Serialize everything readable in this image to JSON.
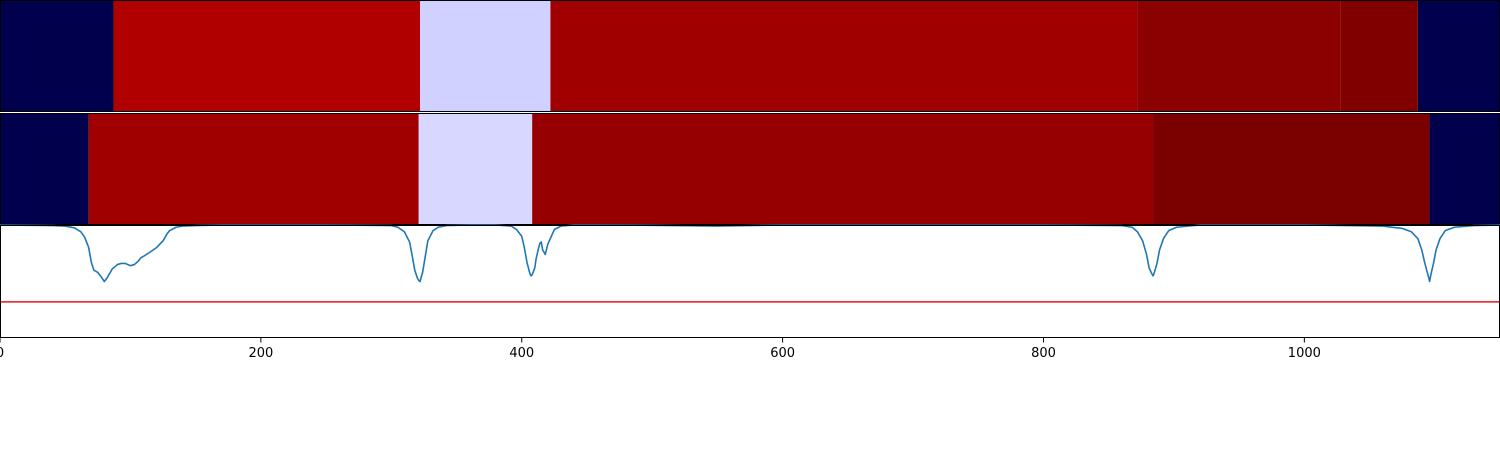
{
  "chart_data": {
    "type": "heatmap",
    "panels": [
      {
        "name": "segment-strip-1",
        "segments": [
          {
            "start": 0,
            "end": 87,
            "color": "#00004c"
          },
          {
            "start": 87,
            "end": 322,
            "color": "#b00000"
          },
          {
            "start": 322,
            "end": 422,
            "color": "#d1d1ff"
          },
          {
            "start": 422,
            "end": 872,
            "color": "#a10000"
          },
          {
            "start": 872,
            "end": 1028,
            "color": "#8b0000"
          },
          {
            "start": 1028,
            "end": 1087,
            "color": "#800000"
          },
          {
            "start": 1087,
            "end": 1150,
            "color": "#00004c"
          }
        ]
      },
      {
        "name": "segment-strip-2",
        "segments": [
          {
            "start": 0,
            "end": 68,
            "color": "#00004c"
          },
          {
            "start": 68,
            "end": 321,
            "color": "#a10000"
          },
          {
            "start": 321,
            "end": 408,
            "color": "#d7d7ff"
          },
          {
            "start": 408,
            "end": 884,
            "color": "#960000"
          },
          {
            "start": 884,
            "end": 1096,
            "color": "#7b0000"
          },
          {
            "start": 1096,
            "end": 1150,
            "color": "#00004c"
          }
        ]
      }
    ],
    "signal": {
      "color": "#1f77b4",
      "ylim": [
        0,
        1
      ],
      "x": [
        0,
        40,
        50,
        57,
        62,
        65,
        68,
        70,
        72,
        75,
        77,
        80,
        82,
        84,
        86,
        88,
        90,
        93,
        96,
        100,
        103,
        106,
        108,
        111,
        115,
        120,
        125,
        128,
        130,
        135,
        140,
        150,
        170,
        200,
        250,
        300,
        305,
        310,
        314,
        316,
        318,
        320,
        321,
        322,
        324,
        326,
        328,
        332,
        336,
        342,
        360,
        380,
        392,
        396,
        400,
        402,
        404,
        406,
        407,
        408,
        410,
        411,
        413,
        414,
        415,
        416,
        418,
        420,
        425,
        430,
        440,
        460,
        500,
        550,
        600,
        700,
        800,
        860,
        868,
        872,
        876,
        879,
        881,
        883,
        884,
        885,
        887,
        889,
        892,
        896,
        902,
        920,
        1000,
        1060,
        1075,
        1082,
        1087,
        1090,
        1092,
        1094,
        1095,
        1096,
        1097,
        1099,
        1101,
        1104,
        1108,
        1115,
        1130,
        1150
      ],
      "y": [
        1,
        0.995,
        0.99,
        0.975,
        0.94,
        0.89,
        0.8,
        0.67,
        0.6,
        0.58,
        0.55,
        0.5,
        0.53,
        0.57,
        0.61,
        0.63,
        0.65,
        0.66,
        0.66,
        0.64,
        0.65,
        0.68,
        0.71,
        0.73,
        0.76,
        0.8,
        0.86,
        0.92,
        0.95,
        0.98,
        0.99,
        0.995,
        1,
        1,
        1,
        0.995,
        0.98,
        0.94,
        0.85,
        0.73,
        0.6,
        0.53,
        0.51,
        0.5,
        0.58,
        0.72,
        0.86,
        0.95,
        0.98,
        0.995,
        1,
        1,
        0.99,
        0.96,
        0.9,
        0.8,
        0.67,
        0.58,
        0.55,
        0.56,
        0.62,
        0.7,
        0.8,
        0.84,
        0.85,
        0.78,
        0.74,
        0.83,
        0.96,
        0.99,
        1,
        1,
        0.997,
        0.99,
        1,
        1,
        1,
        0.995,
        0.98,
        0.94,
        0.86,
        0.74,
        0.62,
        0.57,
        0.55,
        0.58,
        0.66,
        0.78,
        0.88,
        0.95,
        0.98,
        1,
        1,
        0.99,
        0.97,
        0.94,
        0.88,
        0.78,
        0.68,
        0.59,
        0.55,
        0.5,
        0.56,
        0.66,
        0.78,
        0.88,
        0.95,
        0.98,
        0.995,
        1
      ]
    },
    "threshold": {
      "value": 0.32,
      "color": "#e3171c"
    },
    "xlim": [
      0,
      1150
    ],
    "xticks": [
      0,
      200,
      400,
      600,
      800,
      1000
    ],
    "xlabel": "",
    "ylabel": "",
    "title": ""
  }
}
